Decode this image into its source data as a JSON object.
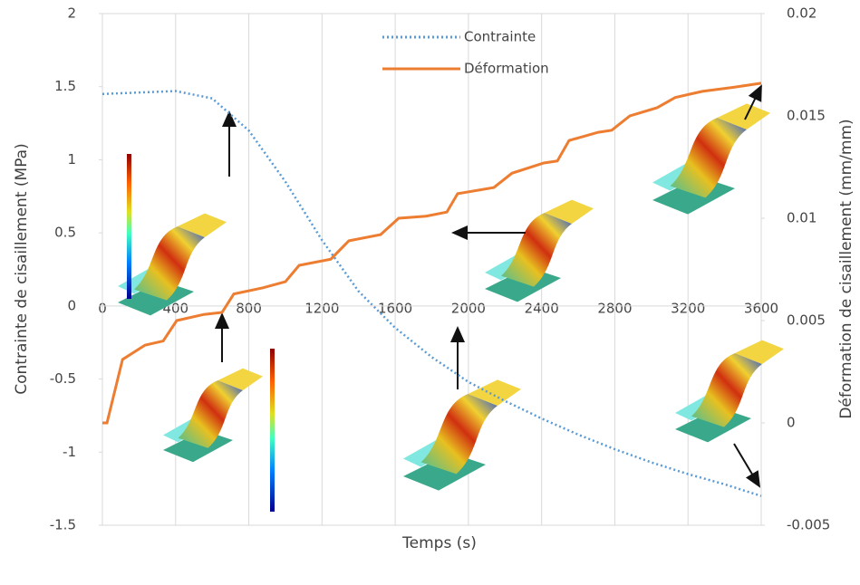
{
  "chart_data": {
    "type": "line",
    "x_label": "Temps (s)",
    "y_label": "Contrainte de cisaillement (MPa)",
    "y2_label": "Déformation de cisaillement (mm/mm)",
    "xlim": [
      0,
      3600
    ],
    "xticks": [
      0,
      400,
      800,
      1200,
      1600,
      2000,
      2400,
      2800,
      3200,
      3600
    ],
    "ylim": [
      -1.5,
      2
    ],
    "yticks": [
      2,
      1.5,
      1,
      0.5,
      0,
      -0.5,
      -1,
      -1.5
    ],
    "y2lim": [
      -0.005,
      0.02
    ],
    "y2ticks": [
      0.02,
      0.015,
      0.01,
      0.005,
      0,
      -0.005
    ],
    "grid": "x",
    "series": [
      {
        "name": "Contrainte",
        "color": "#5b9bd5",
        "line_style": "dotted",
        "axis": "y",
        "x": [
          0,
          200,
          400,
          600,
          800,
          1000,
          1200,
          1400,
          1600,
          1800,
          2000,
          2200,
          2400,
          2600,
          2800,
          3000,
          3200,
          3400,
          3600
        ],
        "values": [
          1.45,
          1.46,
          1.47,
          1.42,
          1.2,
          0.85,
          0.45,
          0.1,
          -0.15,
          -0.35,
          -0.52,
          -0.65,
          -0.77,
          -0.88,
          -0.98,
          -1.07,
          -1.15,
          -1.22,
          -1.3
        ]
      },
      {
        "name": "Déformation",
        "color": "#ed7d31",
        "line_style": "solid",
        "axis": "y2",
        "x": [
          0,
          25,
          110,
          233,
          332,
          406,
          555,
          654,
          718,
          877,
          1000,
          1075,
          1248,
          1347,
          1520,
          1619,
          1768,
          1882,
          1941,
          2139,
          2238,
          2412,
          2486,
          2550,
          2709,
          2783,
          2882,
          3031,
          3130,
          3278,
          3450,
          3600
        ],
        "values": [
          0,
          0,
          0.0031,
          0.0038,
          0.004,
          0.005,
          0.0053,
          0.0054,
          0.0063,
          0.0066,
          0.0069,
          0.0077,
          0.008,
          0.0089,
          0.0092,
          0.01,
          0.0101,
          0.0103,
          0.0112,
          0.0115,
          0.0122,
          0.0127,
          0.0128,
          0.0138,
          0.0142,
          0.0143,
          0.015,
          0.0154,
          0.0159,
          0.0162,
          0.0164,
          0.0166
        ]
      }
    ]
  }
}
